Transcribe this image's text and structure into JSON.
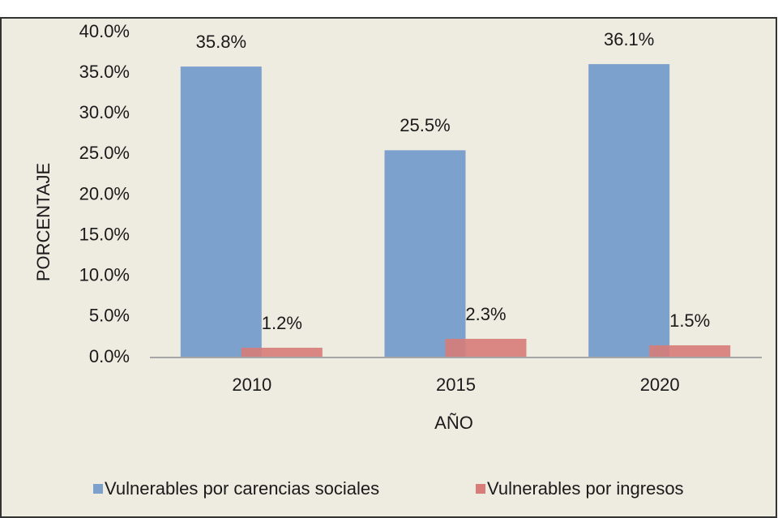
{
  "chart_data": {
    "type": "bar",
    "categories": [
      "2010",
      "2015",
      "2020"
    ],
    "series": [
      {
        "name": "Vulnerables por carencias sociales",
        "color": "#7da1cd",
        "values": [
          35.8,
          25.5,
          36.1
        ],
        "value_labels": [
          "35.8%",
          "25.5%",
          "36.1%"
        ]
      },
      {
        "name": "Vulnerables por ingresos",
        "color": "#d77c79",
        "values": [
          1.2,
          2.3,
          1.5
        ],
        "value_labels": [
          "1.2%",
          "2.3%",
          "1.5%"
        ]
      }
    ],
    "x_label": "AÑO",
    "y_label": "PORCENTAJE",
    "ylim": [
      0,
      40
    ],
    "yticks": [
      {
        "value": 0,
        "label": "0.0%"
      },
      {
        "value": 5,
        "label": "5.0%"
      },
      {
        "value": 10,
        "label": "10.0%"
      },
      {
        "value": 15,
        "label": "15.0%"
      },
      {
        "value": 20,
        "label": "20.0%"
      },
      {
        "value": 25,
        "label": "25.0%"
      },
      {
        "value": 30,
        "label": "30.0%"
      },
      {
        "value": 35,
        "label": "35.0%"
      },
      {
        "value": 40,
        "label": "40.0%"
      }
    ],
    "grid": false,
    "legend": "bottom"
  }
}
